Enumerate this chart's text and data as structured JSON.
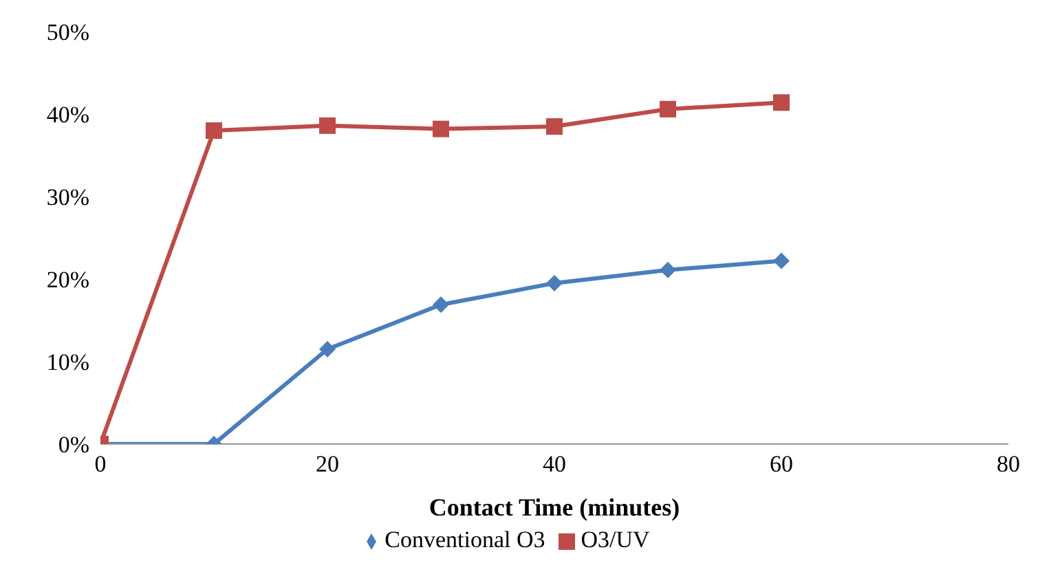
{
  "chart_data": {
    "type": "line",
    "xlabel": "Contact Time (minutes)",
    "x": [
      0,
      10,
      20,
      30,
      40,
      50,
      60
    ],
    "series": [
      {
        "name": "Conventional O3",
        "color": "#4a7ebb",
        "marker": "diamond",
        "values": [
          0,
          0,
          11.5,
          16.9,
          19.5,
          21.1,
          22.2
        ]
      },
      {
        "name": "O3/UV",
        "color": "#be4b48",
        "marker": "square",
        "values": [
          0,
          38.0,
          38.6,
          38.2,
          38.5,
          40.6,
          41.4
        ]
      }
    ],
    "xlim": [
      0,
      80
    ],
    "xticks": [
      0,
      20,
      40,
      60,
      80
    ],
    "ylim": [
      0,
      50
    ],
    "yticks": [
      {
        "value": 0,
        "label": "0%"
      },
      {
        "value": 10,
        "label": "10%"
      },
      {
        "value": 20,
        "label": "20%"
      },
      {
        "value": 30,
        "label": "30%"
      },
      {
        "value": 40,
        "label": "40%"
      },
      {
        "value": 50,
        "label": "50%"
      }
    ],
    "grid": false,
    "legend": "bottom"
  }
}
